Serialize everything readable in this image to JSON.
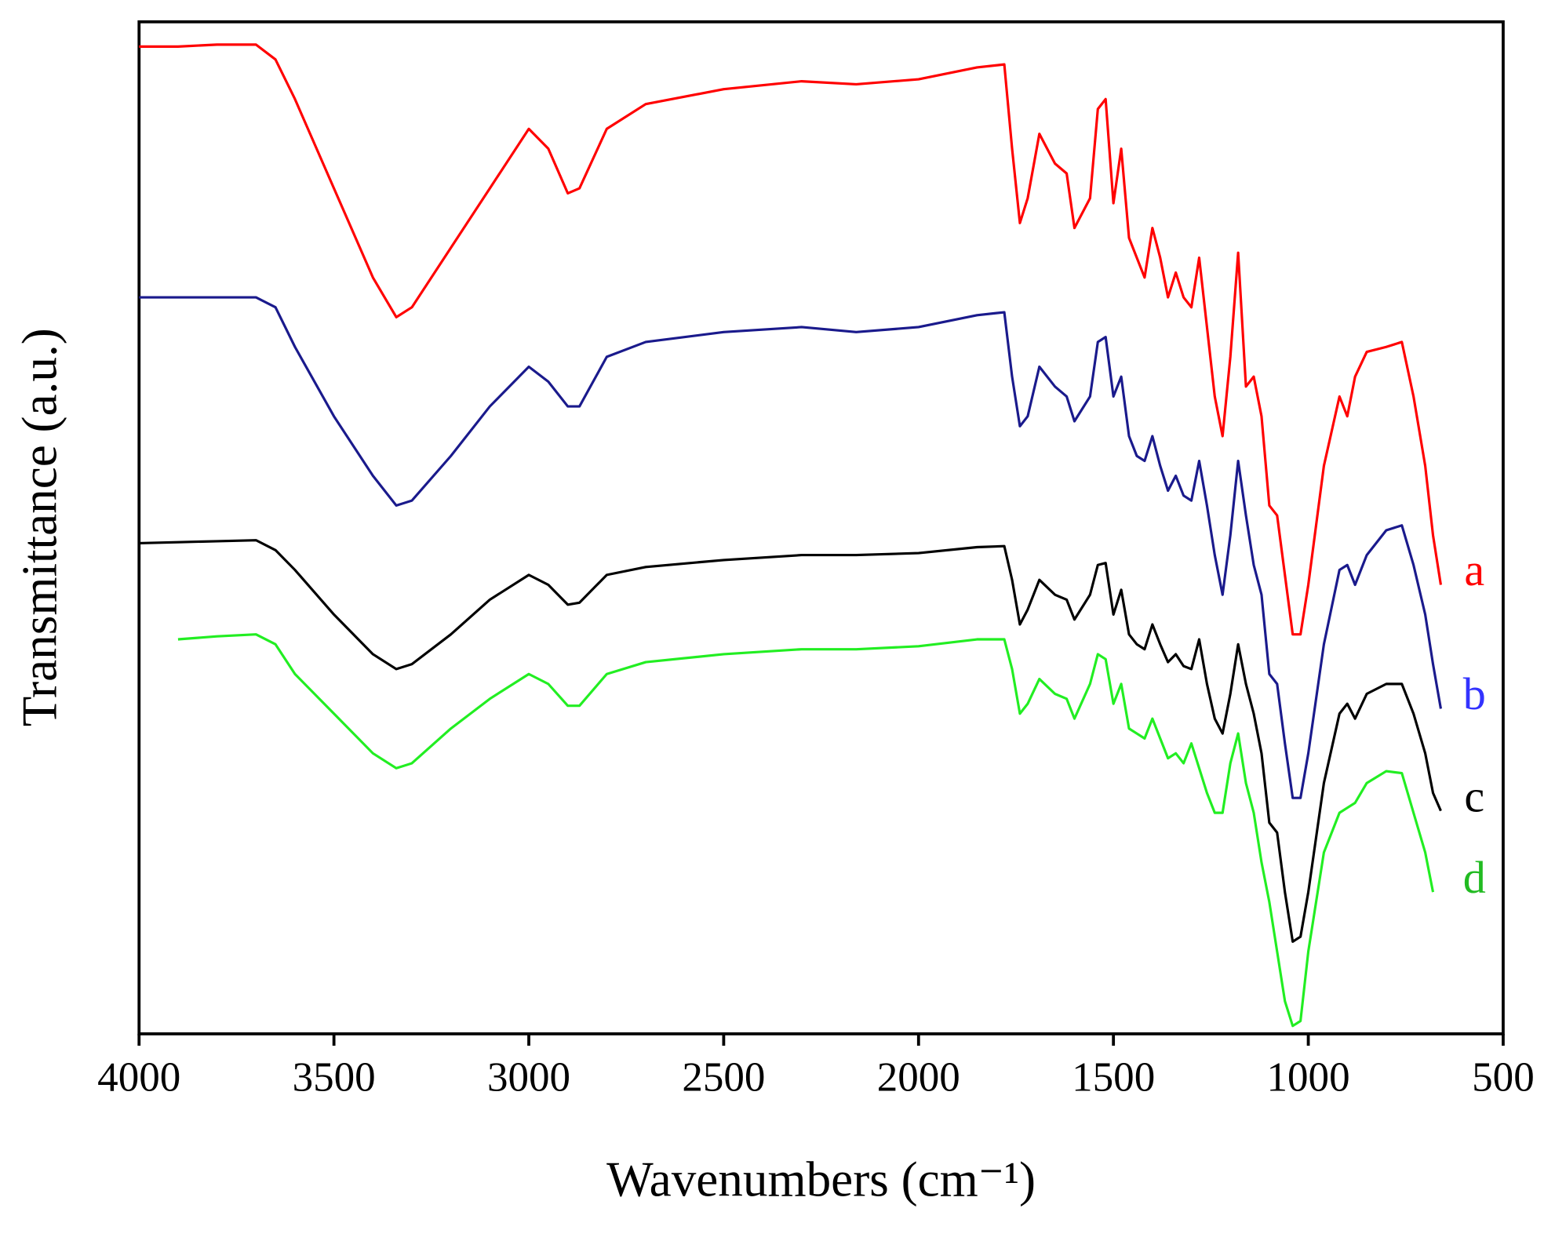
{
  "chart_data": {
    "type": "line",
    "x_label": "Wavenumbers (cm⁻¹)",
    "y_label": "Transmittance (a.u.)",
    "x": [
      4000,
      3900,
      3800,
      3700,
      3650,
      3600,
      3500,
      3400,
      3340,
      3300,
      3200,
      3100,
      3000,
      2950,
      2900,
      2870,
      2800,
      2700,
      2500,
      2300,
      2160,
      2000,
      1850,
      1780,
      1760,
      1740,
      1720,
      1690,
      1650,
      1620,
      1600,
      1560,
      1540,
      1520,
      1500,
      1480,
      1460,
      1440,
      1420,
      1400,
      1380,
      1360,
      1340,
      1320,
      1300,
      1280,
      1260,
      1240,
      1220,
      1200,
      1180,
      1160,
      1140,
      1120,
      1100,
      1080,
      1060,
      1040,
      1020,
      1000,
      960,
      920,
      900,
      880,
      850,
      800,
      760,
      730,
      700,
      680,
      660
    ],
    "series": [
      {
        "name": "a",
        "color": "#ff0000",
        "values": [
          996,
          996,
          998,
          998,
          983,
          943,
          853,
          763,
          723,
          733,
          793,
          853,
          913,
          893,
          848,
          853,
          913,
          938,
          953,
          961,
          958,
          963,
          975,
          978,
          893,
          818,
          843,
          908,
          878,
          868,
          813,
          843,
          933,
          943,
          838,
          893,
          803,
          783,
          763,
          813,
          783,
          743,
          768,
          743,
          733,
          783,
          713,
          643,
          603,
          683,
          788,
          653,
          663,
          623,
          533,
          523,
          463,
          403,
          403,
          453,
          573,
          643,
          623,
          663,
          688,
          693,
          698,
          643,
          573,
          503,
          453
        ]
      },
      {
        "name": "b",
        "color": "#1a1a8c",
        "values": [
          743,
          743,
          743,
          743,
          733,
          693,
          623,
          563,
          533,
          538,
          583,
          633,
          673,
          658,
          633,
          633,
          683,
          698,
          708,
          713,
          708,
          713,
          725,
          728,
          663,
          613,
          623,
          673,
          653,
          643,
          618,
          643,
          698,
          703,
          643,
          663,
          603,
          583,
          578,
          603,
          573,
          548,
          563,
          543,
          538,
          578,
          533,
          483,
          443,
          503,
          578,
          523,
          473,
          443,
          363,
          353,
          293,
          238,
          238,
          283,
          393,
          468,
          473,
          453,
          483,
          508,
          513,
          473,
          423,
          373,
          328
        ]
      },
      {
        "name": "c",
        "color": "#000000",
        "values": [
          495,
          496,
          497,
          498,
          488,
          468,
          423,
          383,
          368,
          373,
          403,
          438,
          463,
          453,
          433,
          435,
          463,
          471,
          478,
          483,
          483,
          485,
          491,
          492,
          458,
          413,
          428,
          458,
          443,
          438,
          418,
          443,
          473,
          475,
          423,
          448,
          403,
          393,
          388,
          413,
          393,
          375,
          383,
          371,
          368,
          398,
          353,
          318,
          303,
          343,
          393,
          353,
          323,
          283,
          213,
          203,
          143,
          93,
          98,
          143,
          253,
          323,
          333,
          318,
          343,
          353,
          353,
          323,
          283,
          243,
          225
        ]
      },
      {
        "name": "d",
        "color": "#22ee22",
        "values": [
          null,
          398,
          401,
          403,
          393,
          363,
          323,
          283,
          268,
          273,
          308,
          338,
          363,
          353,
          331,
          331,
          363,
          375,
          383,
          388,
          388,
          391,
          398,
          398,
          368,
          323,
          333,
          358,
          343,
          338,
          318,
          353,
          383,
          378,
          333,
          353,
          308,
          303,
          298,
          318,
          298,
          278,
          283,
          273,
          293,
          268,
          243,
          223,
          223,
          273,
          303,
          253,
          223,
          173,
          133,
          83,
          33,
          8,
          13,
          83,
          183,
          223,
          228,
          233,
          253,
          265,
          263,
          223,
          183,
          143,
          null
        ]
      }
    ],
    "label_colors": [
      "#ff0000",
      "#3333ff",
      "#000000",
      "#22bb22"
    ],
    "xlim": [
      4000,
      500
    ],
    "xticks": [
      4000,
      3500,
      3000,
      2500,
      2000,
      1500,
      1000,
      500
    ],
    "ylim": [
      0,
      1021
    ]
  }
}
